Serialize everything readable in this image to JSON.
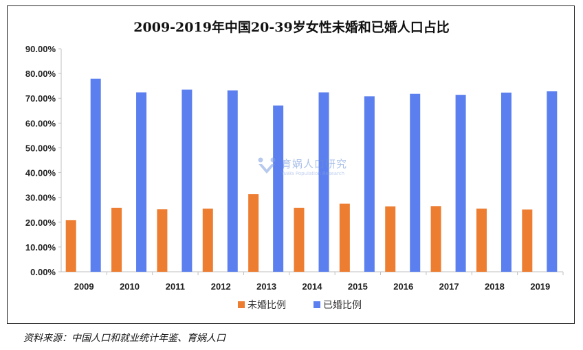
{
  "chart_data": {
    "type": "bar",
    "title": "2009-2019年中国20-39岁女性未婚和已婚人口占比",
    "categories": [
      "2009",
      "2010",
      "2011",
      "2012",
      "2013",
      "2014",
      "2015",
      "2016",
      "2017",
      "2018",
      "2019"
    ],
    "series": [
      {
        "name": "未婚比例",
        "color": "#ED7D31",
        "values": [
          20.8,
          25.8,
          25.2,
          25.5,
          31.3,
          25.8,
          27.5,
          26.4,
          26.5,
          25.5,
          25.1
        ]
      },
      {
        "name": "已婚比例",
        "color": "#5B7FEE",
        "values": [
          77.9,
          72.4,
          73.5,
          73.2,
          67.1,
          72.4,
          70.8,
          71.8,
          71.4,
          72.3,
          72.8
        ]
      }
    ],
    "yticks": [
      "0.00%",
      "10.00%",
      "20.00%",
      "30.00%",
      "40.00%",
      "50.00%",
      "60.00%",
      "70.00%",
      "80.00%",
      "90.00%"
    ],
    "ylim": [
      0,
      90
    ],
    "grid": false,
    "legend_position": "bottom"
  },
  "watermark": {
    "name_cn": "育娲人口研究",
    "name_en": "YuWa Population Research"
  },
  "source_note": "资料来源：中国人口和就业统计年鉴、育娲人口"
}
